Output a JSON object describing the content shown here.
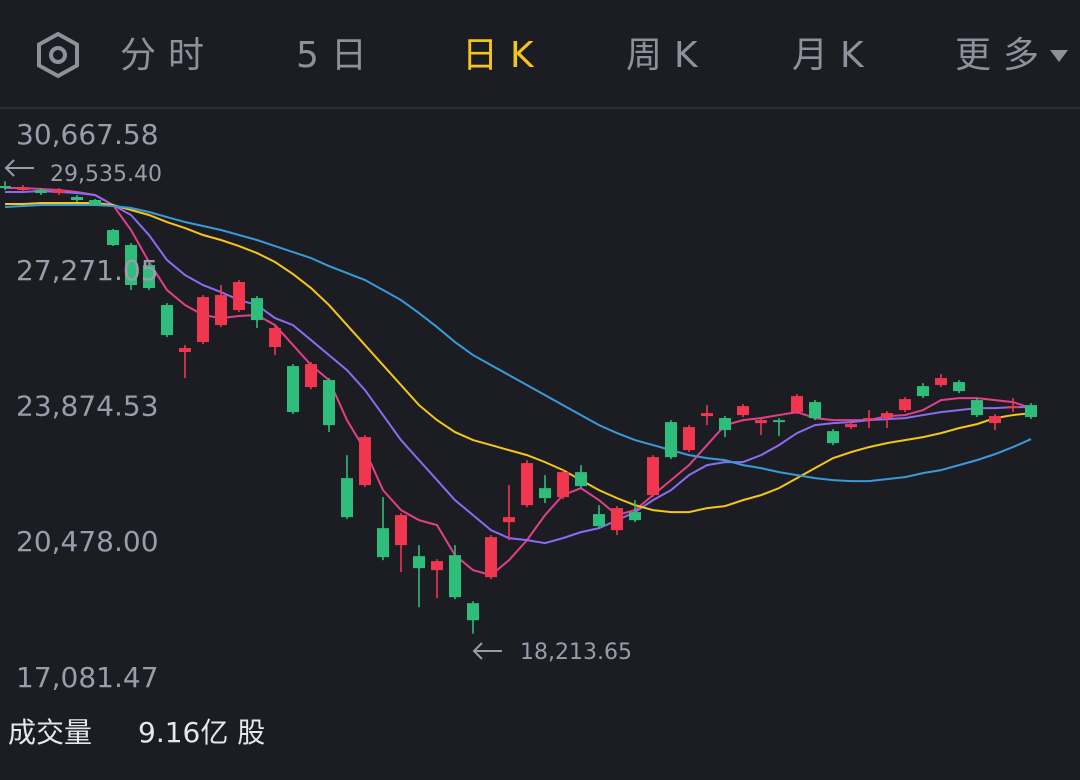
{
  "tabs": [
    "分时",
    "5日",
    "日K",
    "周K",
    "月K",
    "更多"
  ],
  "active_tab": 2,
  "volume": {
    "label": "成交量",
    "value": "9.16亿 股"
  },
  "chart_data": {
    "type": "candlestick",
    "up_color": "#f0374f",
    "down_color": "#2ebd7a",
    "ylim": [
      17081.47,
      30667.58
    ],
    "yticks": [
      {
        "value": 30667.58,
        "label": "30,667.58"
      },
      {
        "value": 27271.05,
        "label": "27,271.05"
      },
      {
        "value": 23874.53,
        "label": "23,874.53"
      },
      {
        "value": 20478.0,
        "label": "20,478.00"
      },
      {
        "value": 17081.47,
        "label": "17,081.47"
      }
    ],
    "annotations": [
      {
        "value": 29535.4,
        "label": "29,535.40"
      },
      {
        "value": 18213.65,
        "label": "18,213.65"
      }
    ],
    "open": [
      29416,
      29316,
      29316,
      29241,
      29141,
      29066,
      28315,
      27940,
      27439,
      26438,
      25262,
      25512,
      25937,
      26313,
      26613,
      25387,
      24911,
      24385,
      24561,
      22108,
      21933,
      20856,
      20431,
      20155,
      19805,
      20180,
      18979,
      19630,
      21006,
      21432,
      21857,
      21632,
      22258,
      21207,
      20806,
      21257,
      21682,
      23509,
      22809,
      23660,
      23610,
      23685,
      23484,
      23559,
      23760,
      24010,
      23284,
      23384,
      23559,
      23610,
      23810,
      24410,
      24436,
      24511,
      24060,
      23484,
      23860,
      23935
    ],
    "high": [
      29535.4,
      29441,
      29366,
      29366,
      29191,
      29091,
      28340,
      27990,
      27490,
      26488,
      25437,
      26688,
      26939,
      27064,
      26663,
      25912,
      24961,
      25011,
      24611,
      22683,
      23184,
      21632,
      21232,
      20431,
      20080,
      20431,
      19029,
      20681,
      21933,
      22558,
      22183,
      22308,
      22433,
      21432,
      21407,
      21557,
      22683,
      23559,
      23434,
      23935,
      23660,
      23960,
      23610,
      23610,
      24210,
      24060,
      23334,
      23509,
      23810,
      23785,
      24135,
      24486,
      24711,
      24561,
      24110,
      23710,
      24110,
      23985
    ],
    "low": [
      29316,
      29266,
      29191,
      29191,
      29016,
      28916,
      27915,
      26813,
      26813,
      25637,
      24611,
      25462,
      25887,
      26263,
      25862,
      25186,
      23710,
      24335,
      23259,
      21082,
      21883,
      20055,
      19755,
      18879,
      19104,
      19079,
      18213.65,
      19580,
      20556,
      21382,
      21482,
      21582,
      21857,
      20856,
      20681,
      21006,
      21632,
      22583,
      22759,
      23434,
      23134,
      23635,
      23184,
      23159,
      23710,
      23560,
      22934,
      23334,
      23359,
      23359,
      23760,
      24110,
      24386,
      24235,
      23635,
      23309,
      23760,
      23585
    ],
    "close": [
      29366,
      29366,
      29241,
      29316,
      29066,
      28941,
      27940,
      26939,
      26863,
      25687,
      25362,
      26638,
      26688,
      27014,
      26062,
      25862,
      23760,
      24961,
      23434,
      21132,
      23134,
      20130,
      21182,
      19855,
      20030,
      19129,
      18553,
      20631,
      21132,
      22483,
      21607,
      22258,
      21907,
      20906,
      21357,
      21056,
      22633,
      22633,
      23384,
      23735,
      23309,
      23910,
      23559,
      23509,
      24160,
      23610,
      22984,
      23459,
      23610,
      23735,
      24085,
      24160,
      24611,
      24285,
      23685,
      23660,
      23910,
      23635
    ],
    "series": [
      {
        "color": "#e0408a",
        "values": [
          29366,
          29366,
          29341,
          29316,
          29266,
          29191,
          28941,
          28315,
          27514,
          26813,
          26438,
          26188,
          26112,
          26163,
          26188,
          25937,
          25437,
          24936,
          24561,
          23559,
          22808,
          21807,
          21307,
          21056,
          20931,
          20180,
          19805,
          19680,
          20055,
          20556,
          21182,
          21682,
          21857,
          21557,
          21182,
          21307,
          21682,
          22058,
          22433,
          22934,
          23434,
          23559,
          23609,
          23685,
          23760,
          23609,
          23559,
          23559,
          23559,
          23660,
          23685,
          23810,
          24060,
          24110,
          24110,
          24060,
          24010,
          23860
        ]
      },
      {
        "color": "#8a6cf0",
        "values": [
          29266,
          29266,
          29291,
          29266,
          29241,
          29191,
          28941,
          28691,
          28190,
          27564,
          27189,
          26938,
          26763,
          26563,
          26438,
          26112,
          25937,
          25562,
          25186,
          24811,
          24310,
          23685,
          23059,
          22558,
          22058,
          21557,
          21182,
          20806,
          20606,
          20556,
          20481,
          20606,
          20756,
          20856,
          21056,
          21257,
          21557,
          21807,
          22183,
          22433,
          22508,
          22508,
          22683,
          22934,
          23234,
          23434,
          23484,
          23509,
          23559,
          23584,
          23609,
          23685,
          23760,
          23810,
          23860,
          23860,
          23885,
          23885
        ]
      },
      {
        "color": "#f5c518",
        "values": [
          28966,
          28966,
          28991,
          28991,
          28991,
          28991,
          28941,
          28816,
          28691,
          28515,
          28365,
          28190,
          28065,
          27915,
          27739,
          27514,
          27214,
          26863,
          26438,
          25937,
          25437,
          24936,
          24435,
          23935,
          23559,
          23259,
          23059,
          22934,
          22808,
          22683,
          22508,
          22308,
          22058,
          21807,
          21607,
          21432,
          21307,
          21257,
          21257,
          21357,
          21407,
          21557,
          21682,
          21857,
          22108,
          22358,
          22608,
          22758,
          22884,
          22984,
          23059,
          23134,
          23234,
          23359,
          23459,
          23609,
          23685,
          23735
        ]
      },
      {
        "color": "#3a9ad9",
        "values": [
          28891,
          28916,
          28941,
          28941,
          28941,
          28941,
          28916,
          28866,
          28766,
          28640,
          28515,
          28415,
          28315,
          28190,
          28065,
          27915,
          27764,
          27614,
          27414,
          27239,
          27064,
          26813,
          26563,
          26238,
          25887,
          25512,
          25186,
          24936,
          24686,
          24435,
          24185,
          23935,
          23685,
          23434,
          23234,
          23059,
          22934,
          22808,
          22683,
          22608,
          22558,
          22433,
          22358,
          22258,
          22183,
          22108,
          22058,
          22033,
          22033,
          22083,
          22133,
          22233,
          22308,
          22433,
          22558,
          22708,
          22884,
          23084
        ]
      }
    ]
  }
}
